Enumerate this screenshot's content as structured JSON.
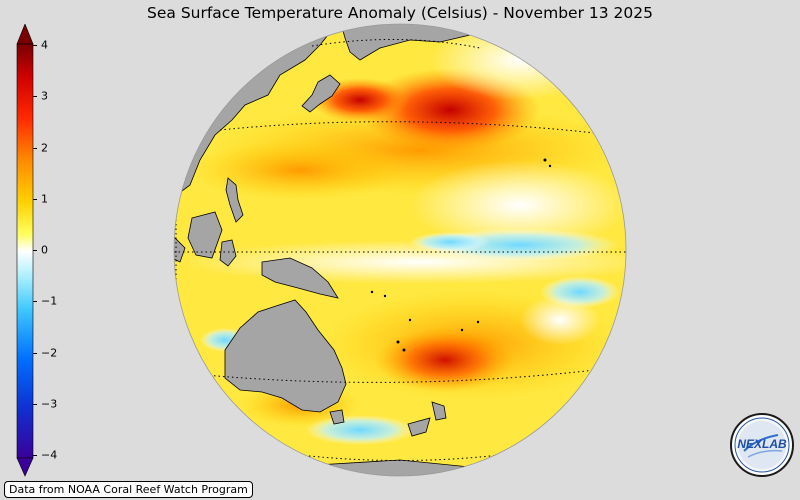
{
  "title": "Sea Surface Temperature Anomaly (Celsius) - November 13 2025",
  "colorbar": {
    "ticks": [
      "4",
      "3",
      "2",
      "1",
      "0",
      "−1",
      "−2",
      "−3",
      "−4"
    ],
    "min": -4,
    "max": 4,
    "colors": [
      "#3a0099",
      "#0034e6",
      "#1a8cff",
      "#5cd5ff",
      "#ffffff",
      "#ffff33",
      "#ffb300",
      "#ff5a00",
      "#d00000",
      "#7a0000"
    ]
  },
  "credit": "Data from NOAA Coral Reef Watch Program",
  "logo": {
    "text": "NEXLAB"
  },
  "colors": {
    "background": "#dcdcdc",
    "land": "#a5a5a5"
  }
}
